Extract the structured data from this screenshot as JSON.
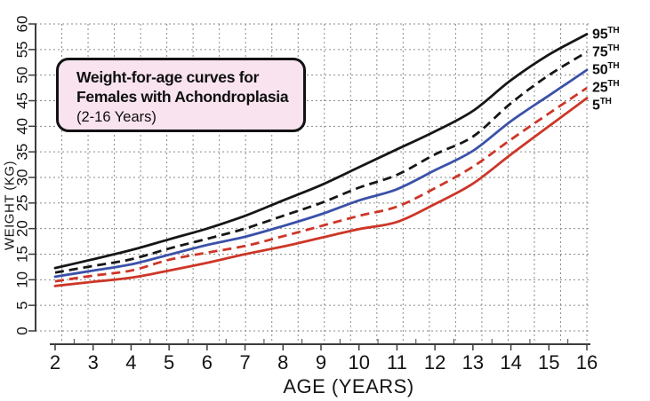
{
  "chart_data": {
    "type": "line",
    "title_lines": [
      "Weight-for-age curves for",
      "Females with Achondroplasia",
      "(2-16 Years)"
    ],
    "xlabel": "AGE (YEARS)",
    "ylabel": "WEIGHT (KG)",
    "x": [
      2,
      3,
      4,
      5,
      6,
      7,
      8,
      9,
      10,
      11,
      12,
      13,
      14,
      15,
      16
    ],
    "xlim": [
      2,
      16
    ],
    "ylim": [
      0,
      60
    ],
    "y_ticks": [
      0,
      5,
      10,
      15,
      20,
      25,
      30,
      35,
      40,
      45,
      50,
      55,
      60
    ],
    "x_minor_tick_step": 0.5,
    "grid": true,
    "legend_position": "right-of-curve-ends",
    "series": [
      {
        "name": "95th percentile",
        "legend_base": "95",
        "legend_sup": "TH",
        "color": "#161616",
        "style": "solid",
        "values": [
          12.3,
          14.0,
          15.8,
          17.9,
          20.0,
          22.5,
          25.5,
          28.5,
          32.0,
          35.5,
          39.0,
          43.0,
          49.0,
          54.0,
          58.0
        ]
      },
      {
        "name": "75th percentile",
        "legend_base": "75",
        "legend_sup": "TH",
        "color": "#161616",
        "style": "dashed",
        "values": [
          11.4,
          12.7,
          14.0,
          16.1,
          18.0,
          20.0,
          22.5,
          25.0,
          28.0,
          30.5,
          34.5,
          38.0,
          44.5,
          50.0,
          54.5
        ]
      },
      {
        "name": "50th percentile",
        "legend_base": "50",
        "legend_sup": "TH",
        "color": "#3a51a8",
        "style": "solid",
        "values": [
          10.6,
          11.8,
          13.0,
          14.9,
          16.8,
          18.4,
          20.5,
          22.8,
          25.5,
          27.7,
          31.4,
          35.2,
          41.0,
          46.0,
          51.0
        ]
      },
      {
        "name": "25th percentile",
        "legend_base": "25",
        "legend_sup": "TH",
        "color": "#cd3627",
        "style": "dashed",
        "values": [
          9.7,
          10.8,
          11.8,
          13.9,
          15.3,
          16.6,
          18.5,
          20.5,
          22.5,
          24.3,
          27.9,
          32.1,
          37.4,
          42.5,
          47.5
        ]
      },
      {
        "name": "5th percentile",
        "legend_base": "5",
        "legend_sup": "TH",
        "color": "#cd3627",
        "style": "solid",
        "values": [
          8.8,
          9.6,
          10.4,
          11.8,
          13.3,
          15.0,
          16.5,
          18.2,
          19.9,
          21.3,
          24.8,
          28.8,
          34.5,
          40.0,
          45.5
        ]
      }
    ],
    "colors": {
      "grid": "#8a8a8a",
      "axis": "#3c3c3c",
      "tick_text": "#141414",
      "title_box_fill": "#f8e3ef",
      "title_box_border": "#121212",
      "background": "#ffffff"
    }
  }
}
